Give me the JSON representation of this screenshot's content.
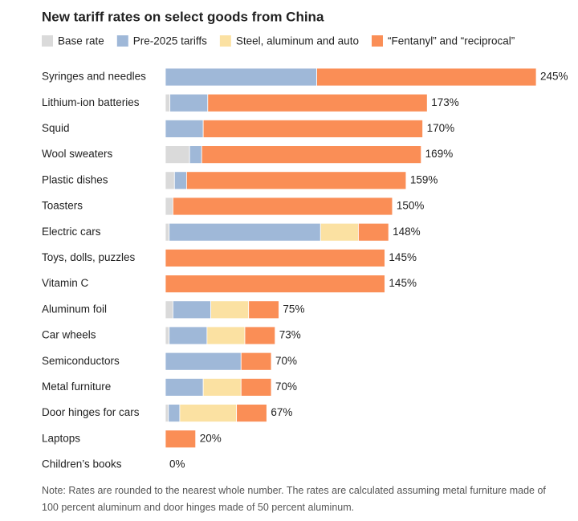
{
  "chart_data": {
    "type": "stacked-bar-horizontal",
    "title": "New tariff rates on select goods from China",
    "categories": [
      "Syringes and needles",
      "Lithium-ion batteries",
      "Squid",
      "Wool sweaters",
      "Plastic dishes",
      "Toasters",
      "Electric cars",
      "Toys, dolls, puzzles",
      "Vitamin C",
      "Aluminum foil",
      "Car wheels",
      "Semiconductors",
      "Metal furniture",
      "Door hinges for cars",
      "Laptops",
      "Children’s books"
    ],
    "series": [
      {
        "name": "Base rate",
        "color": "#dadada",
        "values": [
          0,
          3,
          0,
          16,
          6,
          5,
          2.5,
          0,
          0,
          5,
          2.5,
          0,
          0,
          2,
          0,
          0
        ]
      },
      {
        "name": "Pre-2025 tariffs",
        "color": "#9fb8d8",
        "values": [
          100,
          25,
          25,
          8,
          8,
          0,
          100,
          0,
          0,
          25,
          25,
          50,
          25,
          7.5,
          0,
          0
        ]
      },
      {
        "name": "Steel, aluminum and auto",
        "color": "#fbe1a2",
        "values": [
          0,
          0,
          0,
          0,
          0,
          0,
          25,
          0,
          0,
          25,
          25,
          0,
          25,
          37.5,
          0,
          0
        ]
      },
      {
        "name": "“Fentanyl” and “reciprocal”",
        "color": "#fa8e56",
        "values": [
          145,
          145,
          145,
          145,
          145,
          145,
          20,
          145,
          145,
          20,
          20,
          20,
          20,
          20,
          20,
          0
        ]
      }
    ],
    "totals": [
      245,
      173,
      170,
      169,
      159,
      150,
      148,
      145,
      145,
      75,
      73,
      70,
      70,
      67,
      20,
      0
    ],
    "total_labels": [
      "245%",
      "173%",
      "170%",
      "169%",
      "159%",
      "150%",
      "148%",
      "145%",
      "145%",
      "75%",
      "73%",
      "70%",
      "70%",
      "67%",
      "20%",
      "0%"
    ],
    "xlim": [
      0,
      245
    ],
    "note": "Note: Rates are rounded to the nearest whole number. The rates are calculated assuming metal furniture made of 100 percent aluminum and door hinges made of 50 percent aluminum."
  }
}
